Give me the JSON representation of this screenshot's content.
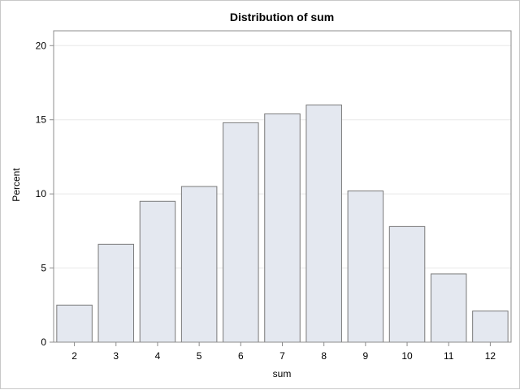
{
  "chart_data": {
    "type": "bar",
    "title": "Distribution of sum",
    "xlabel": "sum",
    "ylabel": "Percent",
    "categories": [
      "2",
      "3",
      "4",
      "5",
      "6",
      "7",
      "8",
      "9",
      "10",
      "11",
      "12"
    ],
    "values": [
      2.5,
      6.6,
      9.5,
      10.5,
      14.8,
      15.4,
      16.0,
      10.2,
      7.8,
      4.6,
      2.1
    ],
    "ylim": [
      0,
      21
    ],
    "yticks": [
      0,
      5,
      10,
      15,
      20
    ],
    "grid": true,
    "colors": {
      "bar_fill": "#e4e8f0",
      "bar_stroke": "#7a7a7a",
      "grid": "#e8e8e8",
      "axis": "#8c8c8c"
    }
  }
}
